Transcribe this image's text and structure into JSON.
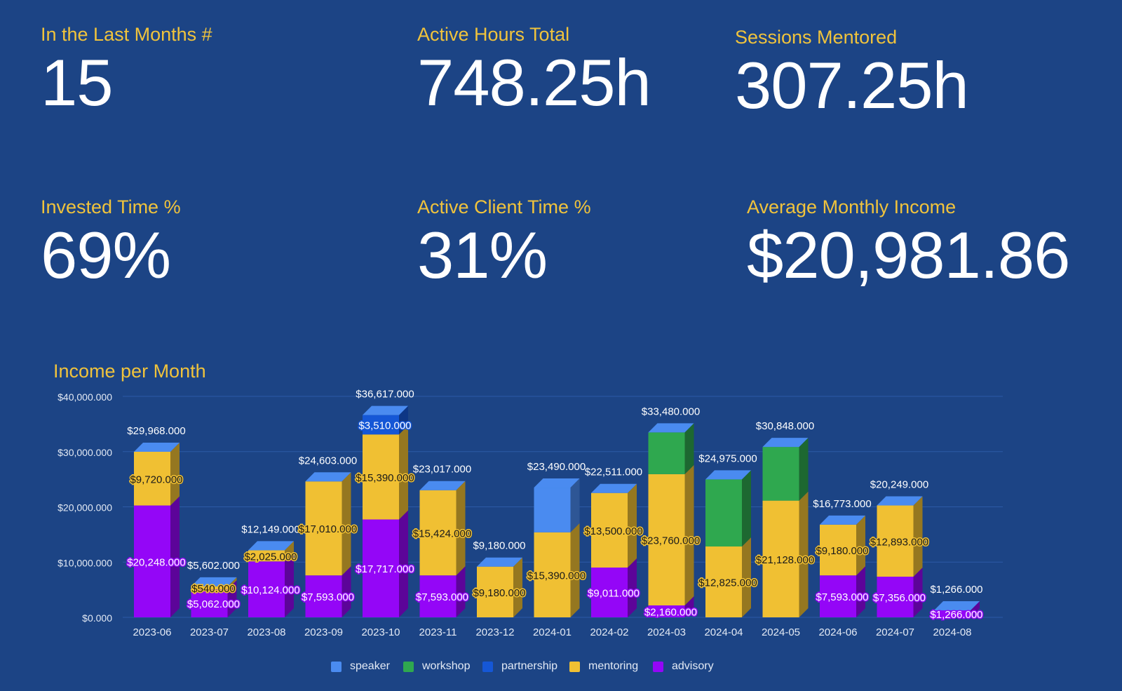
{
  "kpis": [
    {
      "id": "last-months",
      "label": "In the Last Months #",
      "value": "15"
    },
    {
      "id": "active-hours",
      "label": "Active Hours Total",
      "value": "748.25h"
    },
    {
      "id": "sessions-mentored",
      "label": "Sessions Mentored",
      "value": "307.25h"
    },
    {
      "id": "invested-time",
      "label": "Invested Time %",
      "value": "69%"
    },
    {
      "id": "active-client-time",
      "label": "Active Client Time %",
      "value": "31%"
    },
    {
      "id": "avg-monthly-income",
      "label": "Average Monthly Income",
      "value": "$20,981.86"
    }
  ],
  "colors": {
    "background": "#1c4485",
    "label": "#f0c33c",
    "speaker": "#4a8bf0",
    "workshop": "#2fa84f",
    "partnership": "#1557d6",
    "mentoring": "#f0c033",
    "advisory": "#9406f7"
  },
  "chart_data": {
    "type": "bar",
    "stacked": true,
    "title": "Income per Month",
    "ylim": [
      0,
      40000
    ],
    "yticks": [
      0,
      10000,
      20000,
      30000,
      40000
    ],
    "ytick_labels": [
      "$0.000",
      "$10,000.000",
      "$20,000.000",
      "$30,000.000",
      "$40,000.000"
    ],
    "categories": [
      "2023-06",
      "2023-07",
      "2023-08",
      "2023-09",
      "2023-10",
      "2023-11",
      "2023-12",
      "2024-01",
      "2024-02",
      "2024-03",
      "2024-04",
      "2024-05",
      "2024-06",
      "2024-07",
      "2024-08"
    ],
    "totals": [
      29968,
      5602,
      12149,
      24603,
      36617,
      23017,
      9180,
      23490,
      22511,
      33480,
      24975,
      30848,
      16773,
      20249,
      1266
    ],
    "total_labels": [
      "$29,968.000",
      "$5,602.000",
      "$12,149.000",
      "$24,603.000",
      "$36,617.000",
      "$23,017.000",
      "$9,180.000",
      "$23,490.000",
      "$22,511.000",
      "$33,480.000",
      "$24,975.000",
      "$30,848.000",
      "$16,773.000",
      "$20,249.000",
      "$1,266.000"
    ],
    "series": [
      {
        "name": "advisory",
        "values": [
          20248,
          5062,
          10124,
          7593,
          17717,
          7593,
          0,
          0,
          9011,
          2160,
          0,
          0,
          7593,
          7356,
          1266
        ],
        "labels": [
          "$20,248.000",
          "$5,062.000",
          "$10,124.000",
          "$7,593.000",
          "$17,717.000",
          "$7,593.000",
          "",
          "",
          "$9,011.000",
          "$2,160.000",
          "",
          "",
          "$7,593.000",
          "$7,356.000",
          "$1,266.000"
        ]
      },
      {
        "name": "mentoring",
        "values": [
          9720,
          540,
          2025,
          17010,
          15390,
          15424,
          9180,
          15390,
          13500,
          23760,
          12825,
          21128,
          9180,
          12893,
          0
        ],
        "labels": [
          "$9,720.000",
          "$540.000",
          "$2,025.000",
          "$17,010.000",
          "$15,390.000",
          "$15,424.000",
          "$9,180.000",
          "$15,390.000",
          "$13,500.000",
          "$23,760.000",
          "$12,825.000",
          "$21,128.000",
          "$9,180.000",
          "$12,893.000",
          ""
        ]
      },
      {
        "name": "partnership",
        "values": [
          0,
          0,
          0,
          0,
          3510,
          0,
          0,
          0,
          0,
          0,
          0,
          0,
          0,
          0,
          0
        ],
        "labels": [
          "",
          "",
          "",
          "",
          "$3,510.000",
          "",
          "",
          "",
          "",
          "",
          "",
          "",
          "",
          "",
          ""
        ]
      },
      {
        "name": "workshop",
        "values": [
          0,
          0,
          0,
          0,
          0,
          0,
          0,
          0,
          0,
          7560,
          12150,
          9720,
          0,
          0,
          0
        ],
        "labels": [
          "",
          "",
          "",
          "",
          "",
          "",
          "",
          "",
          "",
          "",
          "",
          "",
          "",
          "",
          ""
        ]
      },
      {
        "name": "speaker",
        "values": [
          0,
          0,
          0,
          0,
          0,
          0,
          0,
          8100,
          0,
          0,
          0,
          0,
          0,
          0,
          0
        ],
        "labels": [
          "",
          "",
          "",
          "",
          "",
          "",
          "",
          "",
          "",
          "",
          "",
          "",
          "",
          "",
          ""
        ]
      }
    ],
    "legend": [
      "speaker",
      "workshop",
      "partnership",
      "mentoring",
      "advisory"
    ],
    "legend_position": "bottom"
  }
}
